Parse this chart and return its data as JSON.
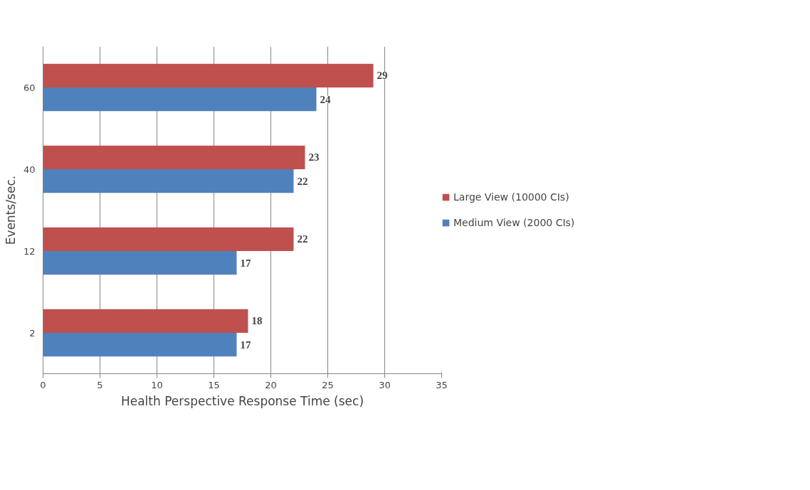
{
  "chart_data": {
    "type": "bar",
    "orientation": "horizontal",
    "categories": [
      "60",
      "40",
      "12",
      "2"
    ],
    "series": [
      {
        "name": "Large View (10000 CIs)",
        "color": "#c0504d",
        "values": [
          29,
          23,
          22,
          18
        ]
      },
      {
        "name": "Medium View (2000 CIs)",
        "color": "#4f81bd",
        "values": [
          24,
          22,
          17,
          17
        ]
      }
    ],
    "xlabel": "Health Perspective Response Time (sec)",
    "ylabel": "Events/sec.",
    "xlim": [
      0,
      35
    ],
    "xticks": [
      0,
      5,
      10,
      15,
      20,
      25,
      30,
      35
    ],
    "grid": "x",
    "legend": "right",
    "data_labels": true
  }
}
